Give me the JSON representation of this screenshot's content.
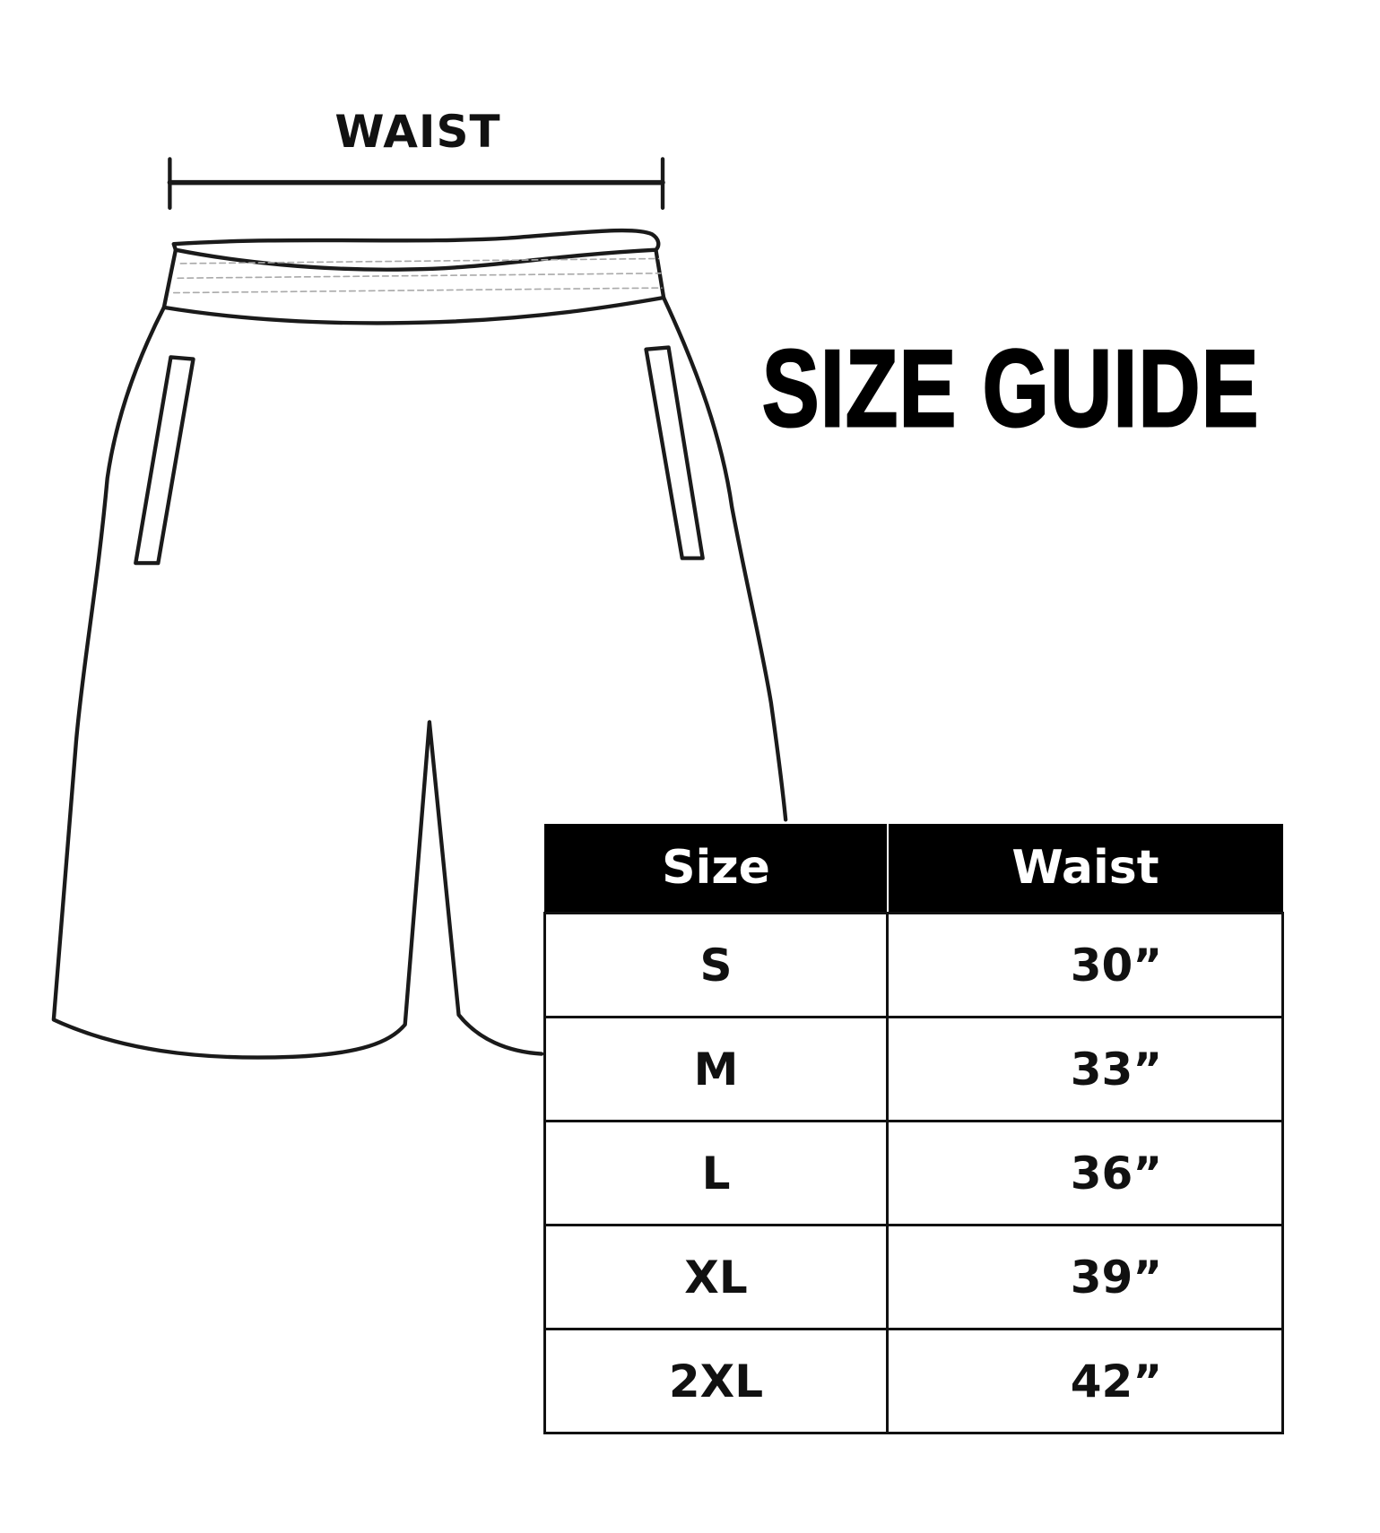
{
  "diagram": {
    "measure_label": "WAIST",
    "title": "SIZE GUIDE"
  },
  "size_table": {
    "headers": [
      "Size",
      "Waist"
    ],
    "rows": [
      {
        "size": "S",
        "waist": "30”"
      },
      {
        "size": "M",
        "waist": "33”"
      },
      {
        "size": "L",
        "waist": "36”"
      },
      {
        "size": "XL",
        "waist": "39”"
      },
      {
        "size": "2XL",
        "waist": "42”"
      }
    ]
  },
  "colors": {
    "line": "#111111",
    "header_bg": "#000000",
    "header_text": "#ffffff"
  }
}
